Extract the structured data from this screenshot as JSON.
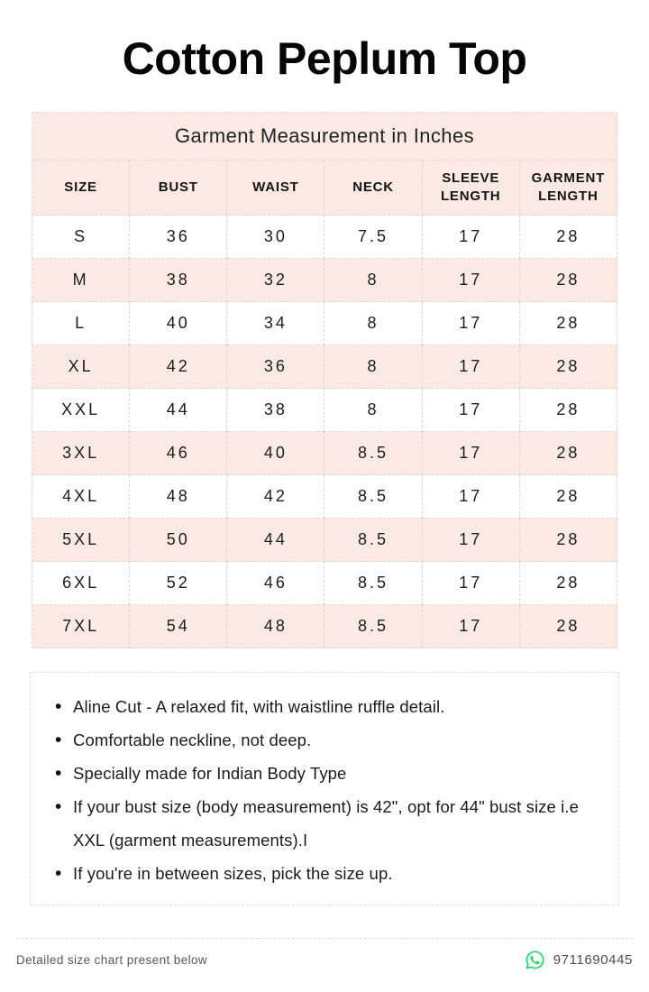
{
  "page": {
    "title": "Cotton Peplum Top"
  },
  "size_table": {
    "caption": "Garment Measurement in Inches",
    "columns": [
      "SIZE",
      "BUST",
      "WAIST",
      "NECK",
      "SLEEVE LENGTH",
      "GARMENT LENGTH"
    ],
    "rows": [
      [
        "S",
        "36",
        "30",
        "7.5",
        "17",
        "28"
      ],
      [
        "M",
        "38",
        "32",
        "8",
        "17",
        "28"
      ],
      [
        "L",
        "40",
        "34",
        "8",
        "17",
        "28"
      ],
      [
        "XL",
        "42",
        "36",
        "8",
        "17",
        "28"
      ],
      [
        "XXL",
        "44",
        "38",
        "8",
        "17",
        "28"
      ],
      [
        "3XL",
        "46",
        "40",
        "8.5",
        "17",
        "28"
      ],
      [
        "4XL",
        "48",
        "42",
        "8.5",
        "17",
        "28"
      ],
      [
        "5XL",
        "50",
        "44",
        "8.5",
        "17",
        "28"
      ],
      [
        "6XL",
        "52",
        "46",
        "8.5",
        "17",
        "28"
      ],
      [
        "7XL",
        "54",
        "48",
        "8.5",
        "17",
        "28"
      ]
    ]
  },
  "notes": {
    "items": [
      "Aline Cut - A relaxed fit, with waistline ruffle detail.",
      "Comfortable neckline,  not deep.",
      "Specially made for Indian Body Type",
      "If your bust size (body measurement) is 42\", opt for 44\" bust size i.e XXL (garment measurements).I",
      "If you're in between sizes, pick the size up."
    ]
  },
  "footer": {
    "note": "Detailed size chart present below",
    "phone": "9711690445",
    "whatsapp_icon": "whatsapp-icon"
  },
  "colors": {
    "accent_pink": "#faeae3",
    "table_border": "#e6d3cb",
    "whatsapp_green": "#25D366",
    "text_dark": "#1c1c1c",
    "text_gray": "#585858"
  }
}
